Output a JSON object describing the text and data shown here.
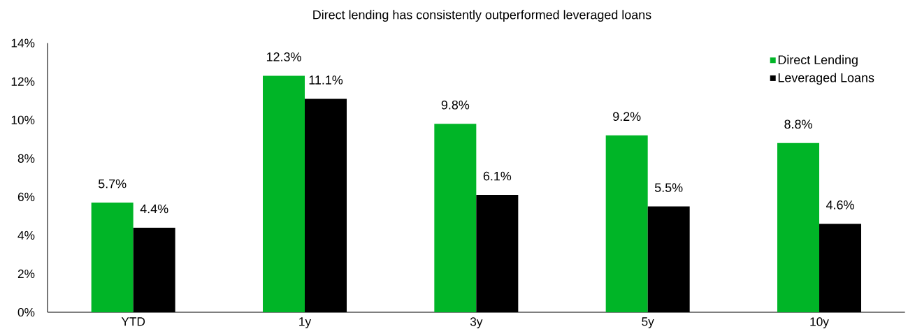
{
  "chart_data": {
    "type": "bar",
    "title": "Direct lending has consistently outperformed leveraged loans",
    "categories": [
      "YTD",
      "1y",
      "3y",
      "5y",
      "10y"
    ],
    "series": [
      {
        "name": "Direct Lending",
        "color": "#00b527",
        "values": [
          5.7,
          12.3,
          9.8,
          9.2,
          8.8
        ],
        "value_labels": [
          "5.7%",
          "12.3%",
          "9.8%",
          "9.2%",
          "8.8%"
        ]
      },
      {
        "name": "Leveraged Loans",
        "color": "#000000",
        "values": [
          4.4,
          11.1,
          6.1,
          5.5,
          4.6
        ],
        "value_labels": [
          "4.4%",
          "11.1%",
          "6.1%",
          "5.5%",
          "4.6%"
        ]
      }
    ],
    "ylim": [
      0,
      14
    ],
    "yticks": [
      {
        "value": 0,
        "label": "0%"
      },
      {
        "value": 2,
        "label": "2%"
      },
      {
        "value": 4,
        "label": "4%"
      },
      {
        "value": 6,
        "label": "6%"
      },
      {
        "value": 8,
        "label": "8%"
      },
      {
        "value": 10,
        "label": "10%"
      },
      {
        "value": 12,
        "label": "12%"
      },
      {
        "value": 14,
        "label": "14%"
      }
    ],
    "grid": false,
    "legend": "top right",
    "marker": "square"
  }
}
